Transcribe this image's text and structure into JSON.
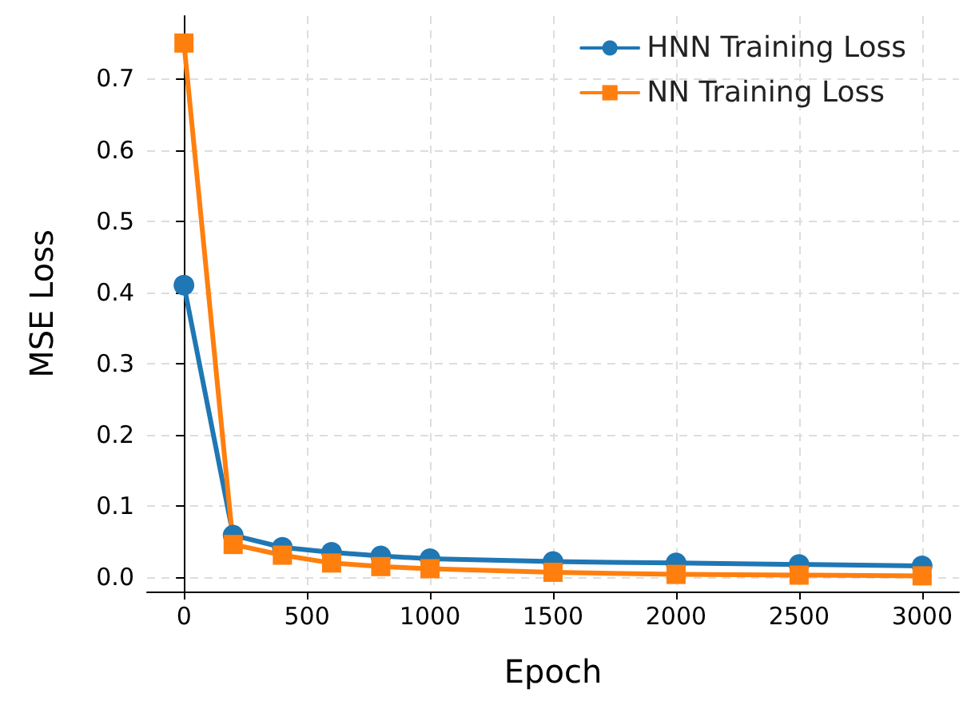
{
  "chart_data": {
    "type": "line",
    "xlabel": "Epoch",
    "ylabel": "MSE Loss",
    "x": [
      0,
      200,
      400,
      600,
      800,
      1000,
      1500,
      2000,
      2500,
      3000
    ],
    "series": [
      {
        "name": "HNN Training Loss",
        "color": "#1f77b4",
        "marker": "circle",
        "values": [
          0.41,
          0.059,
          0.042,
          0.035,
          0.03,
          0.026,
          0.022,
          0.02,
          0.018,
          0.016
        ]
      },
      {
        "name": "NN Training Loss",
        "color": "#ff7f0e",
        "marker": "square",
        "values": [
          0.75,
          0.046,
          0.031,
          0.02,
          0.015,
          0.012,
          0.007,
          0.004,
          0.003,
          0.002
        ]
      }
    ],
    "xlim": [
      -150,
      3150
    ],
    "xticks": [
      0,
      500,
      1000,
      1500,
      2000,
      2500,
      3000
    ],
    "ylim": [
      -0.02,
      0.788
    ],
    "yticks": [
      {
        "value": 0,
        "label": "0.0"
      },
      {
        "value": 0.1,
        "label": "0.1"
      },
      {
        "value": 0.2,
        "label": "0.2"
      },
      {
        "value": 0.3,
        "label": "0.3"
      },
      {
        "value": 0.4,
        "label": "0.4"
      },
      {
        "value": 0.5,
        "label": "0.5"
      },
      {
        "value": 0.6,
        "label": "0.6"
      },
      {
        "value": 0.7,
        "label": "0.7"
      }
    ],
    "grid": true,
    "legend": "top right",
    "line_style": "solid"
  }
}
